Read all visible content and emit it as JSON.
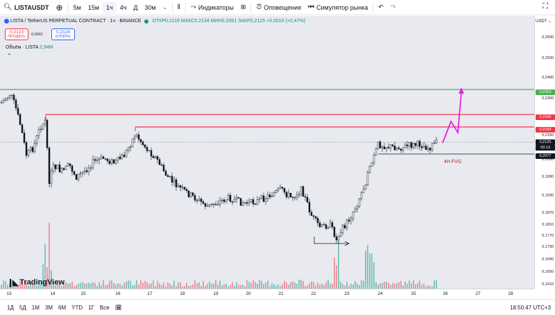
{
  "toolbar": {
    "symbol": "LISTAUSDT",
    "intervals": [
      "5м",
      "15м",
      "1ч",
      "4ч",
      "Д",
      "30м"
    ],
    "active_interval": "1ч",
    "indicators_label": "Индикаторы",
    "alerts_label": "Оповещения",
    "replay_label": "Симулятор рынка"
  },
  "legend": {
    "title": "LISTA / TetherUS PERPETUAL CONTRACT · 1ч · BINANCE",
    "ohlc": "ОТКР0,2116 МАКС0,2134 МИН0,2081 ЗАКР0,2125 +0,0010 (+0,47%)"
  },
  "trade": {
    "sell_price": "0,2123",
    "sell_label": "ПРОДАТЬ",
    "spread": "0,0001",
    "buy_price": "0,2124",
    "buy_label": "КУПИТЬ"
  },
  "volume": {
    "label": "Объём · LISTA",
    "value": "2,94M"
  },
  "brand": "TradingView",
  "price_axis": {
    "currency": "USDT",
    "labels": [
      "0,2600",
      "0,2500",
      "0,2400",
      "0,2300",
      "0,2200",
      "0,2150",
      "0,2050",
      "0,1990",
      "0,1930",
      "0,1870",
      "0,1810",
      "0,1770",
      "0,1730",
      "0,1690",
      "0,1650",
      "0,1610"
    ],
    "tags": {
      "green": "0,2353",
      "red1": "0,2240",
      "red2": "0,2189",
      "current": "0,2125",
      "countdown": "09:13",
      "gray": "0,2077"
    }
  },
  "time_axis": [
    "13",
    "14",
    "15",
    "16",
    "17",
    "18",
    "19",
    "20",
    "21",
    "22",
    "23",
    "24",
    "25",
    "26",
    "27",
    "28"
  ],
  "annotation": "4H FVG",
  "bottombar": {
    "ranges": [
      "1Д",
      "5Д",
      "1М",
      "3М",
      "6М",
      "YTD",
      "1Г",
      "Все"
    ],
    "clock": "18:50:47 UTC+3"
  },
  "colors": {
    "green_line": "#4caf50",
    "red_line": "#f23645",
    "magenta": "#e91ee8",
    "up": "#131722",
    "background": "#e9eaf0"
  }
}
